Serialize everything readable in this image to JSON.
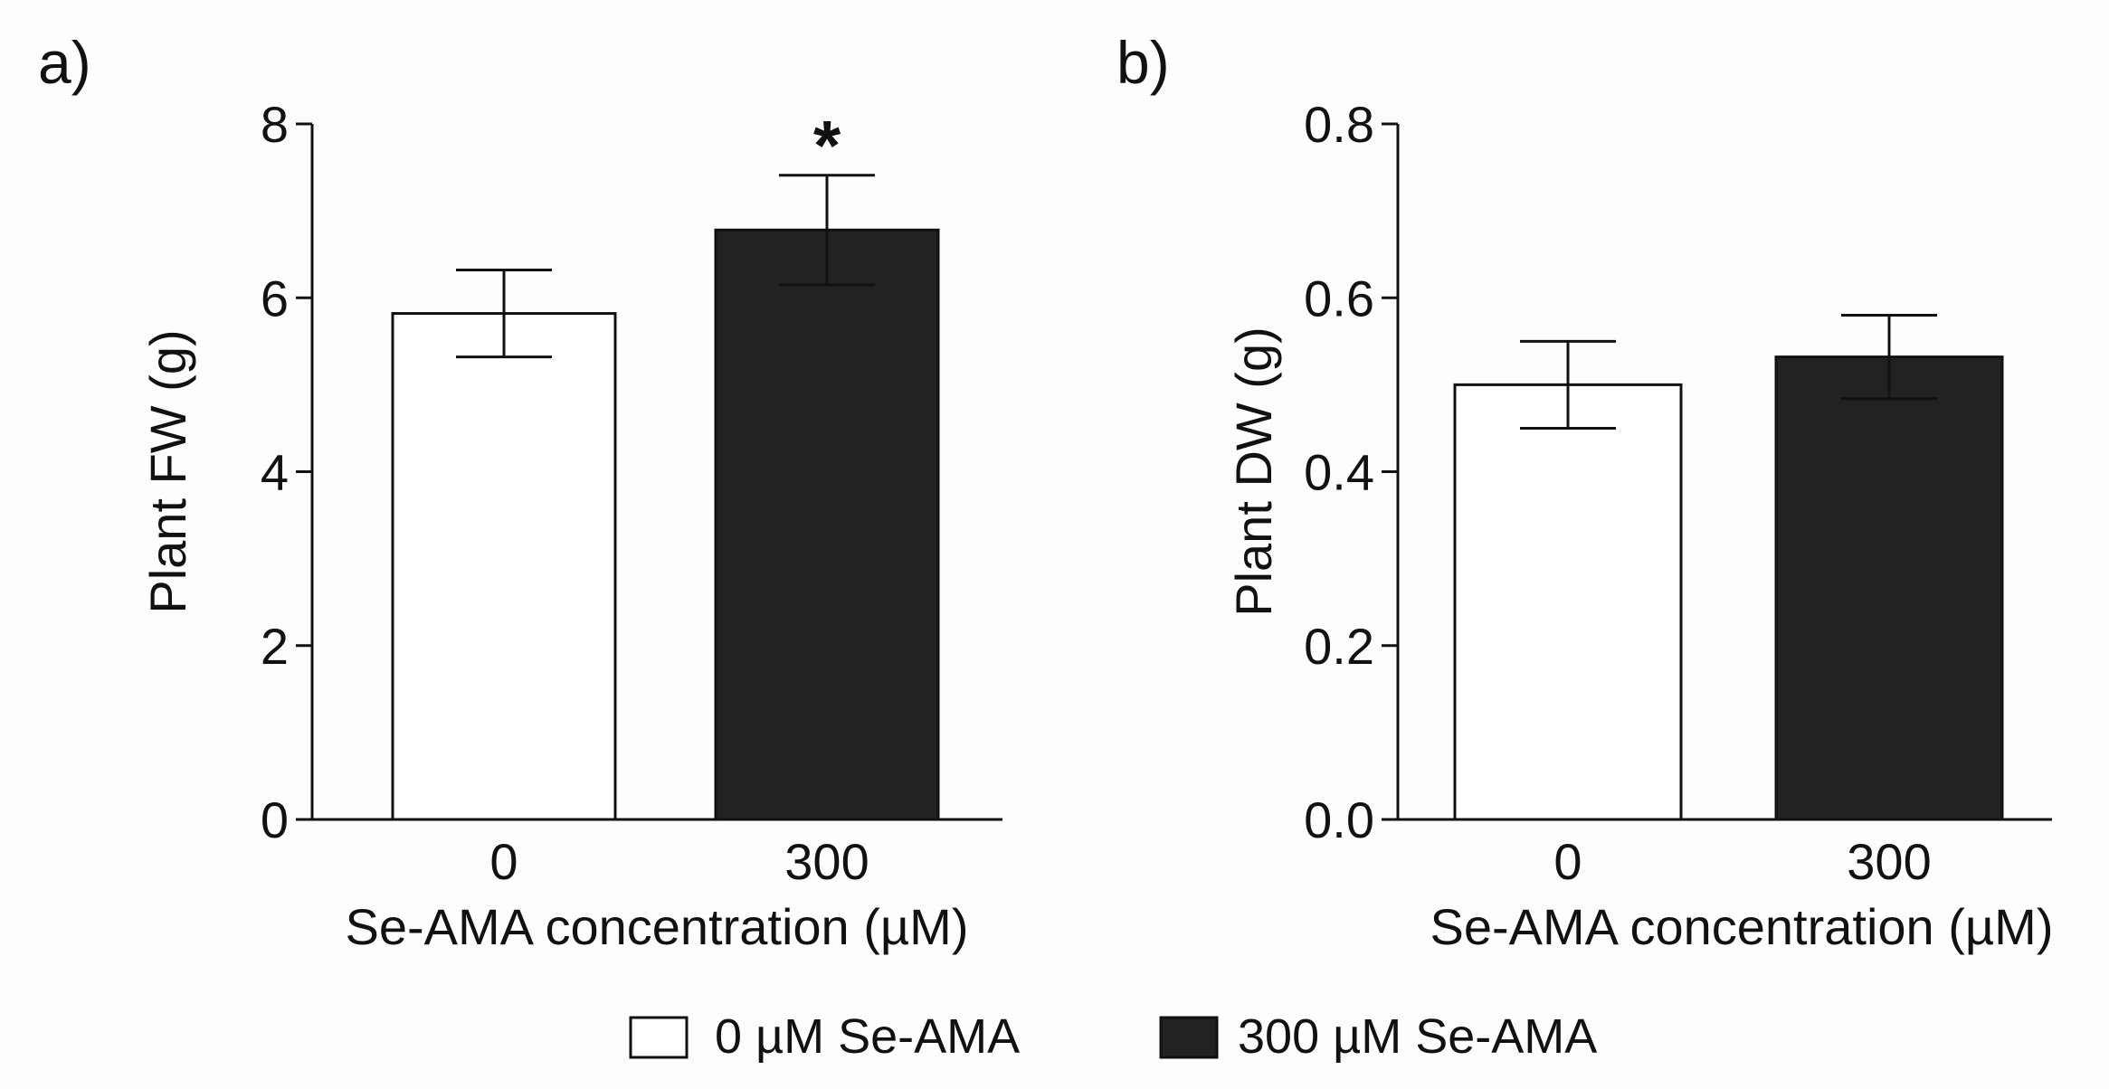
{
  "legend": {
    "items": [
      {
        "label": "0 µM Se-AMA",
        "fill": "#ffffff"
      },
      {
        "label": "300 µM Se-AMA",
        "fill": "#222222"
      }
    ]
  },
  "chart_data": [
    {
      "panel_label": "a)",
      "type": "bar",
      "categories": [
        "0",
        "300"
      ],
      "values": [
        5.82,
        6.78
      ],
      "errors": [
        0.5,
        0.63
      ],
      "significance": [
        "",
        "*"
      ],
      "colors": [
        "#ffffff",
        "#222222"
      ],
      "xlabel": "Se-AMA concentration (µM)",
      "ylabel": "Plant FW (g)",
      "ylim": [
        0,
        8
      ],
      "yticks": [
        0,
        2,
        4,
        6,
        8
      ],
      "ytick_labels": [
        "0",
        "2",
        "4",
        "6",
        "8"
      ],
      "grid": false
    },
    {
      "panel_label": "b)",
      "type": "bar",
      "categories": [
        "0",
        "300"
      ],
      "values": [
        0.5,
        0.532
      ],
      "errors": [
        0.05,
        0.048
      ],
      "significance": [
        "",
        ""
      ],
      "colors": [
        "#ffffff",
        "#222222"
      ],
      "xlabel": "Se-AMA concentration (µM)",
      "ylabel": "Plant DW (g)",
      "ylim": [
        0,
        0.8
      ],
      "yticks": [
        0,
        0.2,
        0.4,
        0.6,
        0.8
      ],
      "ytick_labels": [
        "0.0",
        "0.2",
        "0.4",
        "0.6",
        "0.8"
      ],
      "grid": false
    }
  ]
}
